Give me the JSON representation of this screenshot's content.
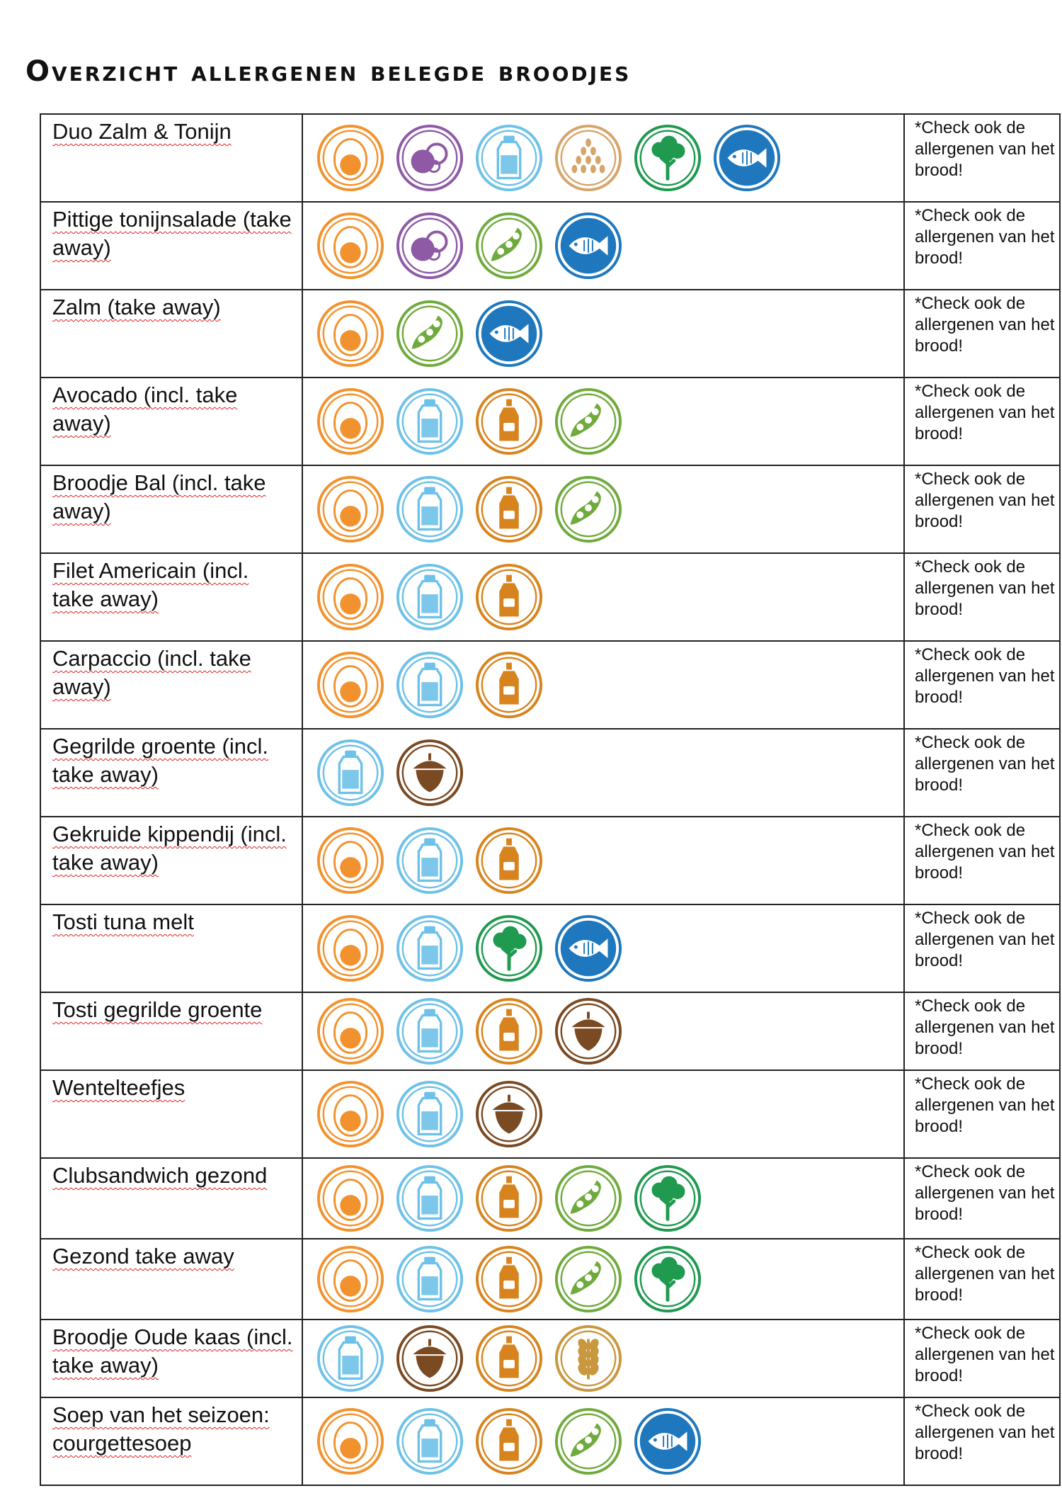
{
  "title": "Overzicht allergenen belegde broodjes",
  "note_text": "*Check ook de allergenen van het brood!",
  "colors": {
    "egg": "#f2922e",
    "lupine": "#8e5aa6",
    "milk": "#6ec1e8",
    "sesame": "#d6a56a",
    "celery": "#1f9a4f",
    "fish": "#1f78bd",
    "soy": "#6fab3c",
    "mustard": "#d8841e",
    "nuts": "#7a4a22",
    "gluten": "#c9973d"
  },
  "rows": [
    {
      "name": "Duo Zalm & Tonijn",
      "h": 124,
      "icons": [
        "egg-icon",
        "lupine-icon",
        "milk-icon",
        "sesame-icon",
        "celery-icon",
        "fish-icon"
      ]
    },
    {
      "name": "Pittige tonijnsalade (take away)",
      "h": 124,
      "icons": [
        "egg-icon",
        "lupine-icon",
        "soy-icon",
        "fish-icon"
      ]
    },
    {
      "name": "Zalm (take away)",
      "h": 124,
      "icons": [
        "egg-icon",
        "soy-icon",
        "fish-icon"
      ]
    },
    {
      "name": "Avocado (incl. take away)",
      "h": 124,
      "icons": [
        "egg-icon",
        "milk-icon",
        "mustard-icon",
        "soy-icon"
      ]
    },
    {
      "name": "Broodje Bal (incl. take away)",
      "h": 124,
      "icons": [
        "egg-icon",
        "milk-icon",
        "mustard-icon",
        "soy-icon"
      ]
    },
    {
      "name": "Filet Americain (incl. take away)",
      "h": 124,
      "icons": [
        "egg-icon",
        "milk-icon",
        "mustard-icon"
      ]
    },
    {
      "name": "Carpaccio (incl. take away)",
      "h": 124,
      "icons": [
        "egg-icon",
        "milk-icon",
        "mustard-icon"
      ]
    },
    {
      "name": "Gegrilde groente (incl. take away)",
      "h": 124,
      "icons": [
        "milk-icon",
        "nuts-icon"
      ]
    },
    {
      "name": "Gekruide kippendij (incl. take away)",
      "h": 124,
      "icons": [
        "egg-icon",
        "milk-icon",
        "mustard-icon"
      ]
    },
    {
      "name": "Tosti tuna melt",
      "h": 124,
      "icons": [
        "egg-icon",
        "milk-icon",
        "celery-icon",
        "fish-icon"
      ]
    },
    {
      "name": "Tosti gegrilde groente",
      "h": 110,
      "icons": [
        "egg-icon",
        "milk-icon",
        "mustard-icon",
        "nuts-icon"
      ]
    },
    {
      "name": "Wentelteefjes",
      "h": 124,
      "icons": [
        "egg-icon",
        "milk-icon",
        "nuts-icon"
      ]
    },
    {
      "name": "Clubsandwich gezond",
      "h": 114,
      "icons": [
        "egg-icon",
        "milk-icon",
        "mustard-icon",
        "soy-icon",
        "celery-icon"
      ]
    },
    {
      "name": "Gezond take away",
      "h": 114,
      "icons": [
        "egg-icon",
        "milk-icon",
        "mustard-icon",
        "soy-icon",
        "celery-icon"
      ]
    },
    {
      "name": "Broodje Oude kaas (incl. take away)",
      "h": 110,
      "icons": [
        "milk-icon",
        "nuts-icon",
        "mustard-icon",
        "gluten-icon"
      ]
    },
    {
      "name": "Soep van het seizoen: courgettesoep",
      "h": 124,
      "icons": [
        "egg-icon",
        "milk-icon",
        "mustard-icon",
        "soy-icon",
        "fish-icon"
      ]
    }
  ]
}
